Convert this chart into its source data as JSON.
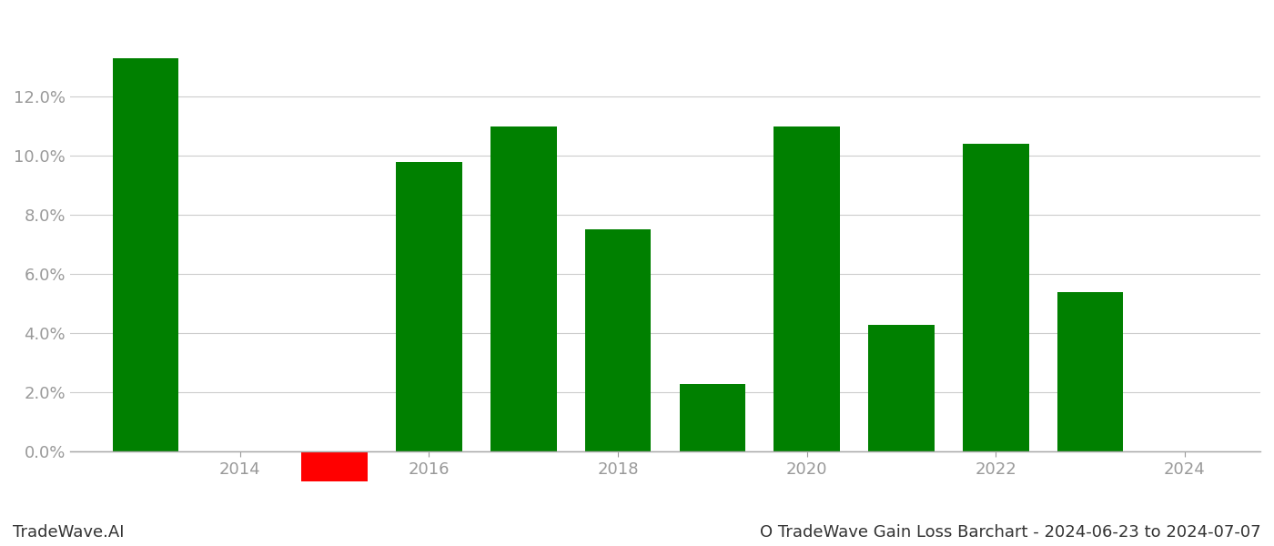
{
  "years": [
    2013,
    2015,
    2016,
    2017,
    2018,
    2019,
    2020,
    2021,
    2022,
    2023
  ],
  "values": [
    0.133,
    -0.01,
    0.098,
    0.11,
    0.075,
    0.023,
    0.11,
    0.043,
    0.104,
    0.054
  ],
  "bar_colors": [
    "#008000",
    "#ff0000",
    "#008000",
    "#008000",
    "#008000",
    "#008000",
    "#008000",
    "#008000",
    "#008000",
    "#008000"
  ],
  "footer_left": "TradeWave.AI",
  "footer_right": "O TradeWave Gain Loss Barchart - 2024-06-23 to 2024-07-07",
  "ylim_min": -0.018,
  "ylim_max": 0.148,
  "ytick_min": 0.0,
  "ytick_max": 0.13,
  "ytick_step": 0.02,
  "xlim_min": 2012.2,
  "xlim_max": 2024.8,
  "xticks": [
    2014,
    2016,
    2018,
    2020,
    2022,
    2024
  ],
  "background_color": "#ffffff",
  "bar_width": 0.7,
  "grid_color": "#cccccc",
  "tick_color": "#999999",
  "spine_color": "#aaaaaa",
  "footer_fontsize": 13,
  "tick_fontsize": 13
}
